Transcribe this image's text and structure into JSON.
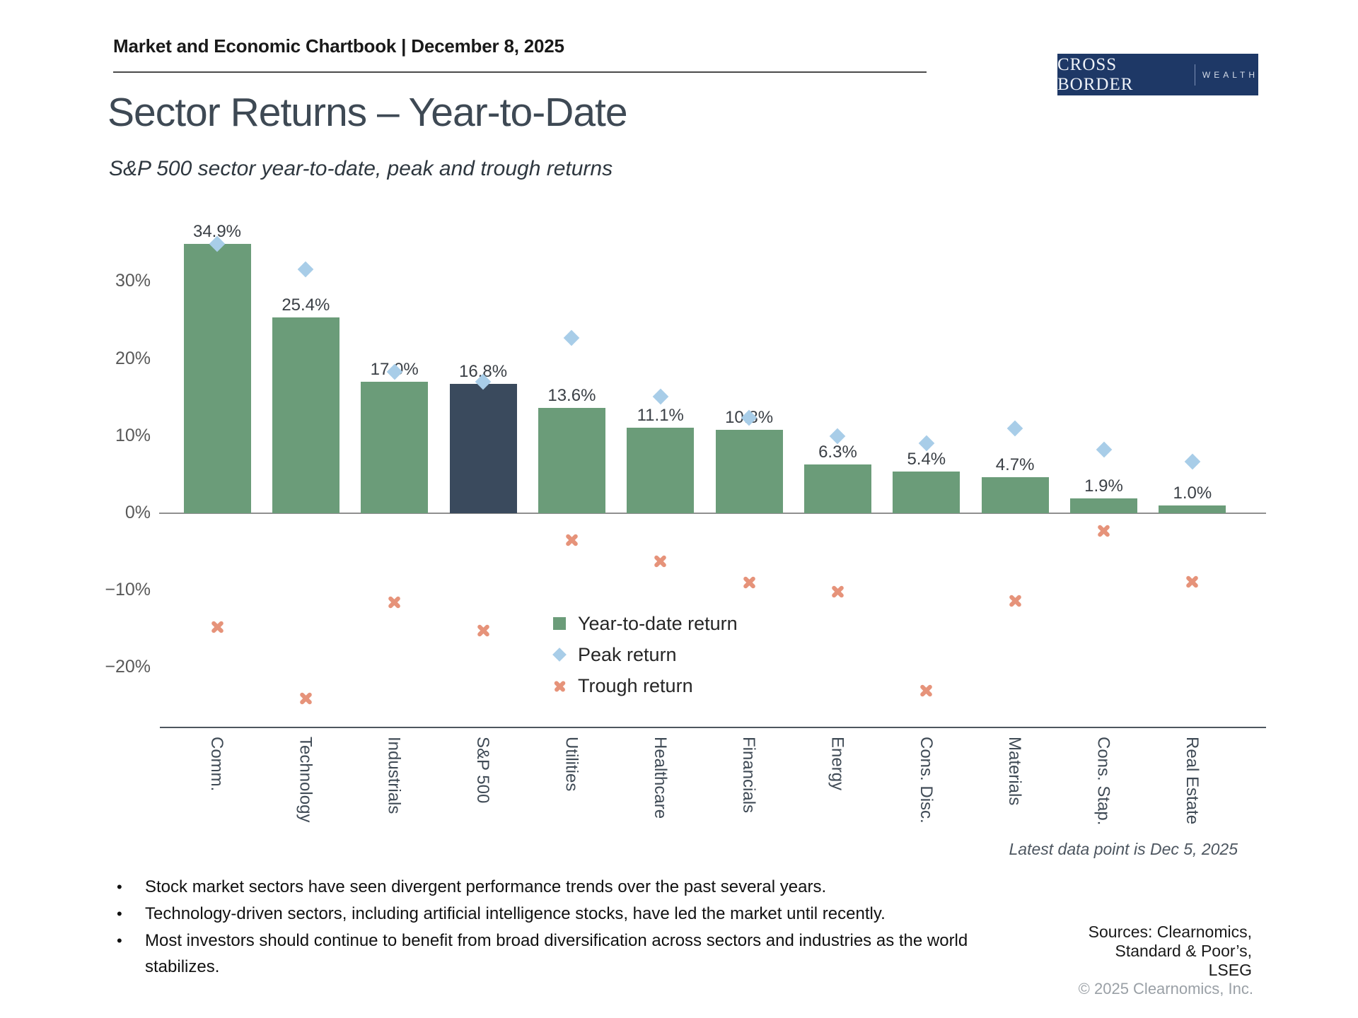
{
  "header": {
    "title": "Market and Economic Chartbook | December 8, 2025"
  },
  "logo": {
    "primary": "CROSS BORDER",
    "secondary": "WEALTH",
    "bg_color": "#1e3866"
  },
  "page": {
    "title": "Sector Returns – Year-to-Date",
    "subtitle": "S&P 500 sector year-to-date, peak and trough returns"
  },
  "chart_data": {
    "type": "bar",
    "title": "Sector Returns – Year-to-Date",
    "categories": [
      "Comm.",
      "Technology",
      "Industrials",
      "S&P 500",
      "Utilities",
      "Healthcare",
      "Financials",
      "Energy",
      "Cons. Disc.",
      "Materials",
      "Cons. Stap.",
      "Real Estate"
    ],
    "series": [
      {
        "name": "Year-to-date return",
        "marker": "bar",
        "values": [
          34.9,
          25.4,
          17.0,
          16.8,
          13.6,
          11.1,
          10.8,
          6.3,
          5.4,
          4.7,
          1.9,
          1.0
        ]
      },
      {
        "name": "Peak return",
        "marker": "diamond",
        "values": [
          34.9,
          31.6,
          18.3,
          17.0,
          22.7,
          15.1,
          12.4,
          10.0,
          9.1,
          11.0,
          8.2,
          6.7
        ]
      },
      {
        "name": "Trough return",
        "marker": "x",
        "values": [
          -14.7,
          -24.0,
          -11.5,
          -15.2,
          -3.5,
          -6.2,
          -9.0,
          -10.2,
          -23.0,
          -11.4,
          -2.3,
          -8.9
        ]
      }
    ],
    "bar_value_labels": [
      "34.9%",
      "25.4%",
      "17.0%",
      "16.8%",
      "13.6%",
      "11.1%",
      "10.8%",
      "6.3%",
      "5.4%",
      "4.7%",
      "1.9%",
      "1.0%"
    ],
    "highlight_category": "S&P 500",
    "colors": {
      "bar": "#6b9c79",
      "highlight_bar": "#3a4a5d",
      "peak": "#a8cde8",
      "trough": "#e6937a"
    },
    "yticks": [
      30,
      20,
      10,
      0,
      -10,
      -20
    ],
    "ytick_labels": [
      "30%",
      "20%",
      "10%",
      "0%",
      "−10%",
      "−20%"
    ],
    "ylim": [
      -27.7,
      42.0
    ],
    "grid": false,
    "legend_position": "inside-lower-center",
    "xlabel": "",
    "ylabel": ""
  },
  "footnotes": {
    "latest": "Latest data point is Dec 5, 2025",
    "sources": [
      "Sources: Clearnomics,",
      "Standard & Poor’s,",
      "LSEG"
    ],
    "copyright": "© 2025 Clearnomics, Inc."
  },
  "bullets": [
    "Stock market sectors have seen divergent performance trends over the past several years.",
    "Technology-driven sectors, including artificial intelligence stocks, have led the market until recently.",
    "Most investors should continue to benefit from broad diversification across sectors and industries as the world stabilizes."
  ]
}
